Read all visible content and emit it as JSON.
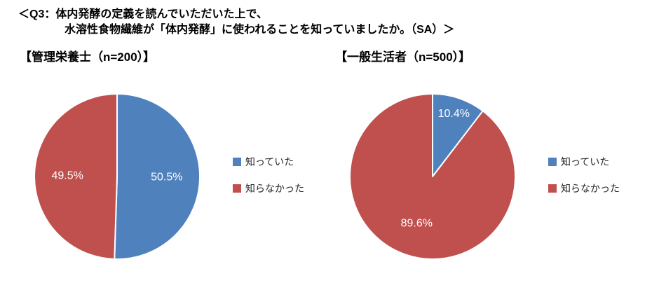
{
  "question": {
    "line1": "＜Q3：体内発酵の定義を読んでいただいた上で、",
    "line2": "水溶性食物繊維が「体内発酵」に使われることを知っていましたか。（SA）＞"
  },
  "palette": {
    "knew_blue": "#4F81BD",
    "did_not_know_red": "#C0504D",
    "slice_label_color": "#ffffff",
    "slice_border_color": "#ffffff"
  },
  "chart_data": [
    {
      "type": "pie",
      "title": "【管理栄養士（n=200）】",
      "labels": [
        "知っていた",
        "知らなかった"
      ],
      "values": [
        50.5,
        49.5
      ],
      "value_labels": [
        "50.5%",
        "49.5%"
      ],
      "colors": [
        "#4F81BD",
        "#C0504D"
      ],
      "start_angle_deg": 0,
      "direction": "clockwise",
      "legend_position": "right"
    },
    {
      "type": "pie",
      "title": "【一般生活者（n=500）】",
      "labels": [
        "知っていた",
        "知らなかった"
      ],
      "values": [
        10.4,
        89.6
      ],
      "value_labels": [
        "10.4%",
        "89.6%"
      ],
      "colors": [
        "#4F81BD",
        "#C0504D"
      ],
      "start_angle_deg": 0,
      "direction": "clockwise",
      "legend_position": "right"
    }
  ]
}
